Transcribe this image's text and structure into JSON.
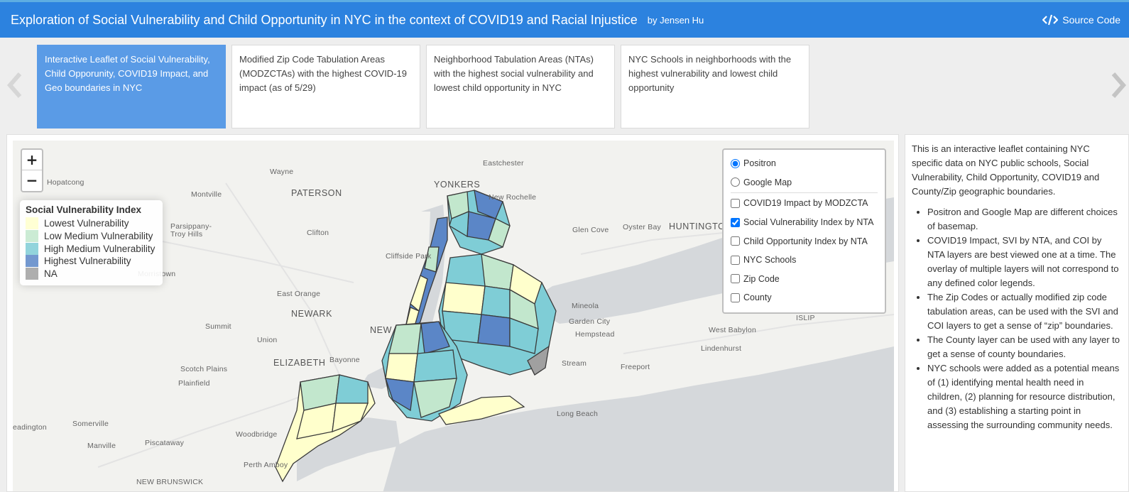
{
  "header": {
    "title": "Exploration of Social Vulnerability and Child Opportunity in NYC in the context of COVID19 and Racial Injustice",
    "author": "by Jensen Hu",
    "source_code": "Source Code",
    "accent": "#2c82df"
  },
  "cards": [
    {
      "label": "Interactive Leaflet of Social Vulnerability, Child Opporunity, COVID19 Impact, and Geo boundaries in NYC",
      "active": true
    },
    {
      "label": "Modified Zip Code Tabulation Areas (MODZCTAs) with the highest COVID-19 impact (as of 5/29)"
    },
    {
      "label": "Neighborhood Tabulation Areas (NTAs) with the highest social vulnerability and lowest child opportunity in NYC"
    },
    {
      "label": "NYC Schools in neighborhoods with the highest vulnerability and lowest child opportunity"
    }
  ],
  "map": {
    "zoom_in": "+",
    "zoom_out": "−",
    "place_labels": [
      "Eastchester",
      "Wayne",
      "Hopatcong",
      "YONKERS",
      "New Rochelle",
      "Montville",
      "PATERSON",
      "Parsippany-Troy Hills",
      "Clifton",
      "Glen Cove",
      "Oyster Bay",
      "HUNTINGTON",
      "Cliffside Park",
      "Morristown",
      "East Orange",
      "NEWARK",
      "Mineola",
      "Summit",
      "NEW",
      "Garden City",
      "Hempstead",
      "West Babylon",
      "ISLIP",
      "Union",
      "Lindenhurst",
      "ELIZABETH",
      "Bayonne",
      "Scotch Plains",
      "Freeport",
      "Stream",
      "Plainfield",
      "Long Beach",
      "Somerville",
      "Woodbridge",
      "Piscataway",
      "Manville",
      "eadington",
      "Perth Amboy",
      "NEW BRUNSWICK"
    ]
  },
  "legend": {
    "title": "Social Vulnerability Index",
    "items": [
      {
        "label": "Lowest Vulnerability",
        "color": "#ffffcc"
      },
      {
        "label": "Low Medium Vulnerability",
        "color": "#c2e7cd"
      },
      {
        "label": "High Medium Vulnerability",
        "color": "#7fcdd6"
      },
      {
        "label": "Highest Vulnerability",
        "color": "#5b86c7"
      },
      {
        "label": "NA",
        "color": "#a0a0a0"
      }
    ]
  },
  "layers": {
    "basemaps": [
      {
        "label": "Positron",
        "checked": true
      },
      {
        "label": "Google Map",
        "checked": false
      }
    ],
    "overlays": [
      {
        "label": "COVID19 Impact by MODZCTA",
        "checked": false
      },
      {
        "label": "Social Vulnerability Index by NTA",
        "checked": true
      },
      {
        "label": "Child Opportunity Index by NTA",
        "checked": false
      },
      {
        "label": "NYC Schools",
        "checked": false
      },
      {
        "label": "Zip Code",
        "checked": false
      },
      {
        "label": "County",
        "checked": false
      }
    ]
  },
  "sidebar": {
    "intro": "This is an interactive leaflet containing NYC specific data on NYC public schools, Social Vulnerability, Child Opportunity, COVID19 and County/Zip geographic boundaries.",
    "bullets": [
      "Positron and Google Map are different choices of basemap.",
      "COVID19 Impact, SVI by NTA, and COI by NTA layers are best viewed one at a time. The overlay of multiple layers will not correspond to any defined color legends.",
      "The Zip Codes or actually modified zip code tabulation areas, can be used with the SVI and COI layers to get a sense of “zip” boundaries.",
      "The County layer can be used with any layer to get a sense of county boundaries.",
      "NYC schools were added as a potential means of (1) identifying mental health need in children, (2) planning for resource distribution, and (3) establishing a starting point in assessing the surrounding community needs."
    ]
  }
}
